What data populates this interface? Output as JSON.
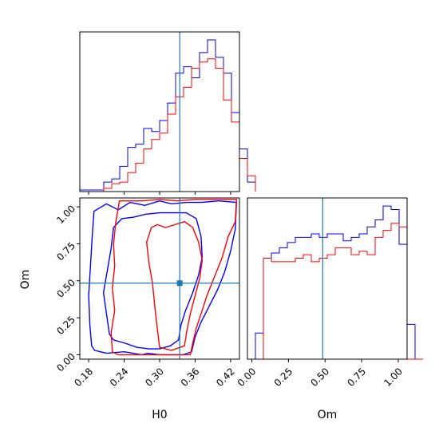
{
  "chart_data": {
    "type": "corner",
    "parameters": [
      "H0",
      "Om"
    ],
    "truths": {
      "H0": 0.334,
      "Om": 0.484
    },
    "colors": {
      "series_a": "#0000ff",
      "series_b": "#ff0000",
      "truth": "#1f77b4"
    },
    "ranges": {
      "H0": [
        0.165,
        0.435
      ],
      "Om": [
        -0.03,
        1.06
      ]
    },
    "ticks": {
      "H0": {
        "values": [
          0.18,
          0.24,
          0.3,
          0.36,
          0.42
        ],
        "labels": [
          "0.18",
          "0.24",
          "0.30",
          "0.36",
          "0.42"
        ]
      },
      "Om": {
        "values": [
          0.0,
          0.25,
          0.5,
          0.75,
          1.0
        ],
        "labels": [
          "0.00",
          "0.25",
          "0.50",
          "0.75",
          "1.00"
        ]
      }
    },
    "hist_H0": {
      "edges_start": 0.165,
      "bin_width": 0.0135,
      "series": [
        {
          "color": "blue",
          "counts": [
            1,
            1,
            1,
            6,
            8,
            16,
            28,
            30,
            40,
            38,
            45,
            56,
            75,
            79,
            72,
            88,
            96,
            85,
            75,
            50,
            27,
            6
          ]
        },
        {
          "color": "red",
          "counts": [
            0,
            0,
            0,
            2,
            5,
            6,
            12,
            18,
            27,
            33,
            37,
            49,
            60,
            66,
            78,
            82,
            84,
            78,
            58,
            44,
            21,
            10
          ]
        }
      ]
    },
    "hist_Om": {
      "edges_start": -0.03,
      "bin_width": 0.0545,
      "series": [
        {
          "color": "blue",
          "counts": [
            0,
            15,
            58,
            61,
            64,
            67,
            70,
            70,
            72,
            70,
            72,
            72,
            68,
            70,
            72,
            76,
            80,
            88,
            86,
            66,
            20,
            0
          ]
        },
        {
          "color": "red",
          "counts": [
            0,
            0,
            58,
            56,
            56,
            56,
            58,
            60,
            56,
            58,
            60,
            64,
            64,
            60,
            62,
            60,
            70,
            74,
            78,
            76,
            0,
            0
          ]
        }
      ]
    },
    "contours": [
      {
        "color": "blue",
        "level": "outer",
        "points": [
          [
            0.185,
            0.06
          ],
          [
            0.182,
            0.2
          ],
          [
            0.18,
            0.4
          ],
          [
            0.183,
            0.6
          ],
          [
            0.186,
            0.8
          ],
          [
            0.189,
            0.97
          ],
          [
            0.21,
            1.02
          ],
          [
            0.23,
            0.98
          ],
          [
            0.25,
            1.03
          ],
          [
            0.275,
            1.01
          ],
          [
            0.3,
            1.04
          ],
          [
            0.32,
            1.02
          ],
          [
            0.345,
            1.03
          ],
          [
            0.37,
            1.03
          ],
          [
            0.4,
            1.04
          ],
          [
            0.43,
            1.03
          ],
          [
            0.428,
            0.85
          ],
          [
            0.42,
            0.7
          ],
          [
            0.41,
            0.56
          ],
          [
            0.398,
            0.44
          ],
          [
            0.384,
            0.33
          ],
          [
            0.37,
            0.22
          ],
          [
            0.36,
            0.12
          ],
          [
            0.354,
            0.02
          ],
          [
            0.34,
            0.0
          ],
          [
            0.3,
            0.0
          ],
          [
            0.28,
            0.01
          ],
          [
            0.27,
            0.0
          ],
          [
            0.24,
            0.02
          ],
          [
            0.21,
            0.01
          ],
          [
            0.19,
            0.03
          ],
          [
            0.185,
            0.06
          ]
        ]
      },
      {
        "color": "blue",
        "level": "inner",
        "points": [
          [
            0.215,
            0.14
          ],
          [
            0.21,
            0.28
          ],
          [
            0.205,
            0.42
          ],
          [
            0.212,
            0.58
          ],
          [
            0.218,
            0.72
          ],
          [
            0.222,
            0.86
          ],
          [
            0.236,
            0.92
          ],
          [
            0.256,
            0.93
          ],
          [
            0.276,
            0.95
          ],
          [
            0.3,
            0.96
          ],
          [
            0.322,
            0.96
          ],
          [
            0.345,
            0.96
          ],
          [
            0.362,
            0.92
          ],
          [
            0.37,
            0.8
          ],
          [
            0.372,
            0.66
          ],
          [
            0.366,
            0.54
          ],
          [
            0.356,
            0.42
          ],
          [
            0.344,
            0.3
          ],
          [
            0.336,
            0.2
          ],
          [
            0.332,
            0.1
          ],
          [
            0.318,
            0.06
          ],
          [
            0.3,
            0.04
          ],
          [
            0.282,
            0.04
          ],
          [
            0.262,
            0.05
          ],
          [
            0.24,
            0.08
          ],
          [
            0.222,
            0.1
          ],
          [
            0.215,
            0.14
          ]
        ]
      },
      {
        "color": "red",
        "level": "outer",
        "points": [
          [
            0.22,
            0.02
          ],
          [
            0.218,
            0.15
          ],
          [
            0.224,
            0.3
          ],
          [
            0.22,
            0.45
          ],
          [
            0.224,
            0.6
          ],
          [
            0.222,
            0.75
          ],
          [
            0.226,
            0.9
          ],
          [
            0.232,
            1.04
          ],
          [
            0.27,
            1.04
          ],
          [
            0.3,
            1.05
          ],
          [
            0.33,
            1.04
          ],
          [
            0.36,
            1.05
          ],
          [
            0.39,
            1.05
          ],
          [
            0.43,
            1.05
          ],
          [
            0.428,
            0.9
          ],
          [
            0.416,
            0.8
          ],
          [
            0.406,
            0.66
          ],
          [
            0.392,
            0.52
          ],
          [
            0.38,
            0.4
          ],
          [
            0.372,
            0.3
          ],
          [
            0.362,
            0.18
          ],
          [
            0.356,
            0.08
          ],
          [
            0.352,
            0.0
          ],
          [
            0.32,
            0.0
          ],
          [
            0.29,
            0.0
          ],
          [
            0.26,
            0.0
          ],
          [
            0.23,
            0.0
          ],
          [
            0.22,
            0.02
          ]
        ]
      },
      {
        "color": "red",
        "level": "inner",
        "points": [
          [
            0.3,
            0.05
          ],
          [
            0.296,
            0.18
          ],
          [
            0.292,
            0.32
          ],
          [
            0.288,
            0.48
          ],
          [
            0.282,
            0.62
          ],
          [
            0.278,
            0.76
          ],
          [
            0.286,
            0.86
          ],
          [
            0.296,
            0.88
          ],
          [
            0.31,
            0.86
          ],
          [
            0.326,
            0.88
          ],
          [
            0.342,
            0.9
          ],
          [
            0.356,
            0.86
          ],
          [
            0.366,
            0.76
          ],
          [
            0.372,
            0.64
          ],
          [
            0.368,
            0.52
          ],
          [
            0.36,
            0.4
          ],
          [
            0.352,
            0.28
          ],
          [
            0.346,
            0.16
          ],
          [
            0.342,
            0.06
          ],
          [
            0.32,
            0.03
          ],
          [
            0.3,
            0.05
          ]
        ]
      }
    ],
    "xlabel_bottom_left": "H0",
    "xlabel_bottom_right": "Om",
    "ylabel_lower": "Om"
  }
}
